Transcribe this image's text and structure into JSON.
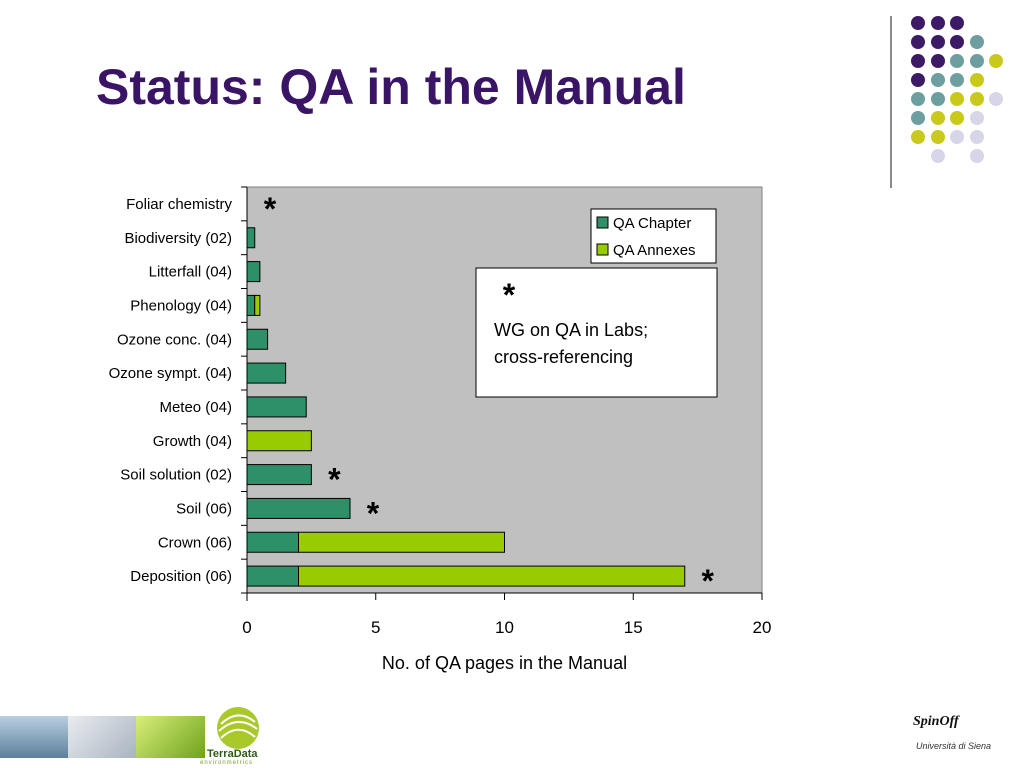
{
  "slide": {
    "title": "Status: QA in the Manual"
  },
  "chart_data": {
    "type": "bar",
    "orientation": "horizontal",
    "stacked": true,
    "categories": [
      "Foliar chemistry",
      "Biodiversity (02)",
      "Litterfall (04)",
      "Phenology (04)",
      "Ozone conc. (04)",
      "Ozone sympt. (04)",
      "Meteo (04)",
      "Growth (04)",
      "Soil solution (02)",
      "Soil (06)",
      "Crown (06)",
      "Deposition (06)"
    ],
    "series": [
      {
        "name": "QA Chapter",
        "color": "#2e9068",
        "values": [
          0,
          0.3,
          0.5,
          0.3,
          0.8,
          1.5,
          2.3,
          0,
          2.5,
          4,
          2,
          2
        ]
      },
      {
        "name": "QA Annexes",
        "color": "#99cc00",
        "values": [
          0,
          0,
          0,
          0.2,
          0,
          0,
          0,
          2.5,
          0,
          0,
          8,
          15
        ]
      }
    ],
    "xlabel": "No. of QA pages in the Manual",
    "xlim": [
      0,
      20
    ],
    "xticks": [
      "0",
      "5",
      "10",
      "15",
      "20"
    ],
    "legend_position": "top-right",
    "plot_background": "#c0c0c0",
    "asterisk_categories": [
      "Foliar chemistry",
      "Soil solution (02)",
      "Soil (06)",
      "Deposition (06)"
    ],
    "annotation": {
      "mark": "*",
      "lines": [
        "WG on QA in Labs;",
        "cross-referencing"
      ]
    }
  },
  "logos": {
    "terradata_name": "TerraData",
    "terradata_sub": "environmetrics",
    "spinoff": "SpinOff",
    "university": "Università di Siena"
  },
  "theme": {
    "dot_purple": "#3d1a66",
    "dot_teal": "#6e9fa0",
    "dot_yellow": "#c9c91c",
    "dot_lavender": "#d6d6e8"
  }
}
